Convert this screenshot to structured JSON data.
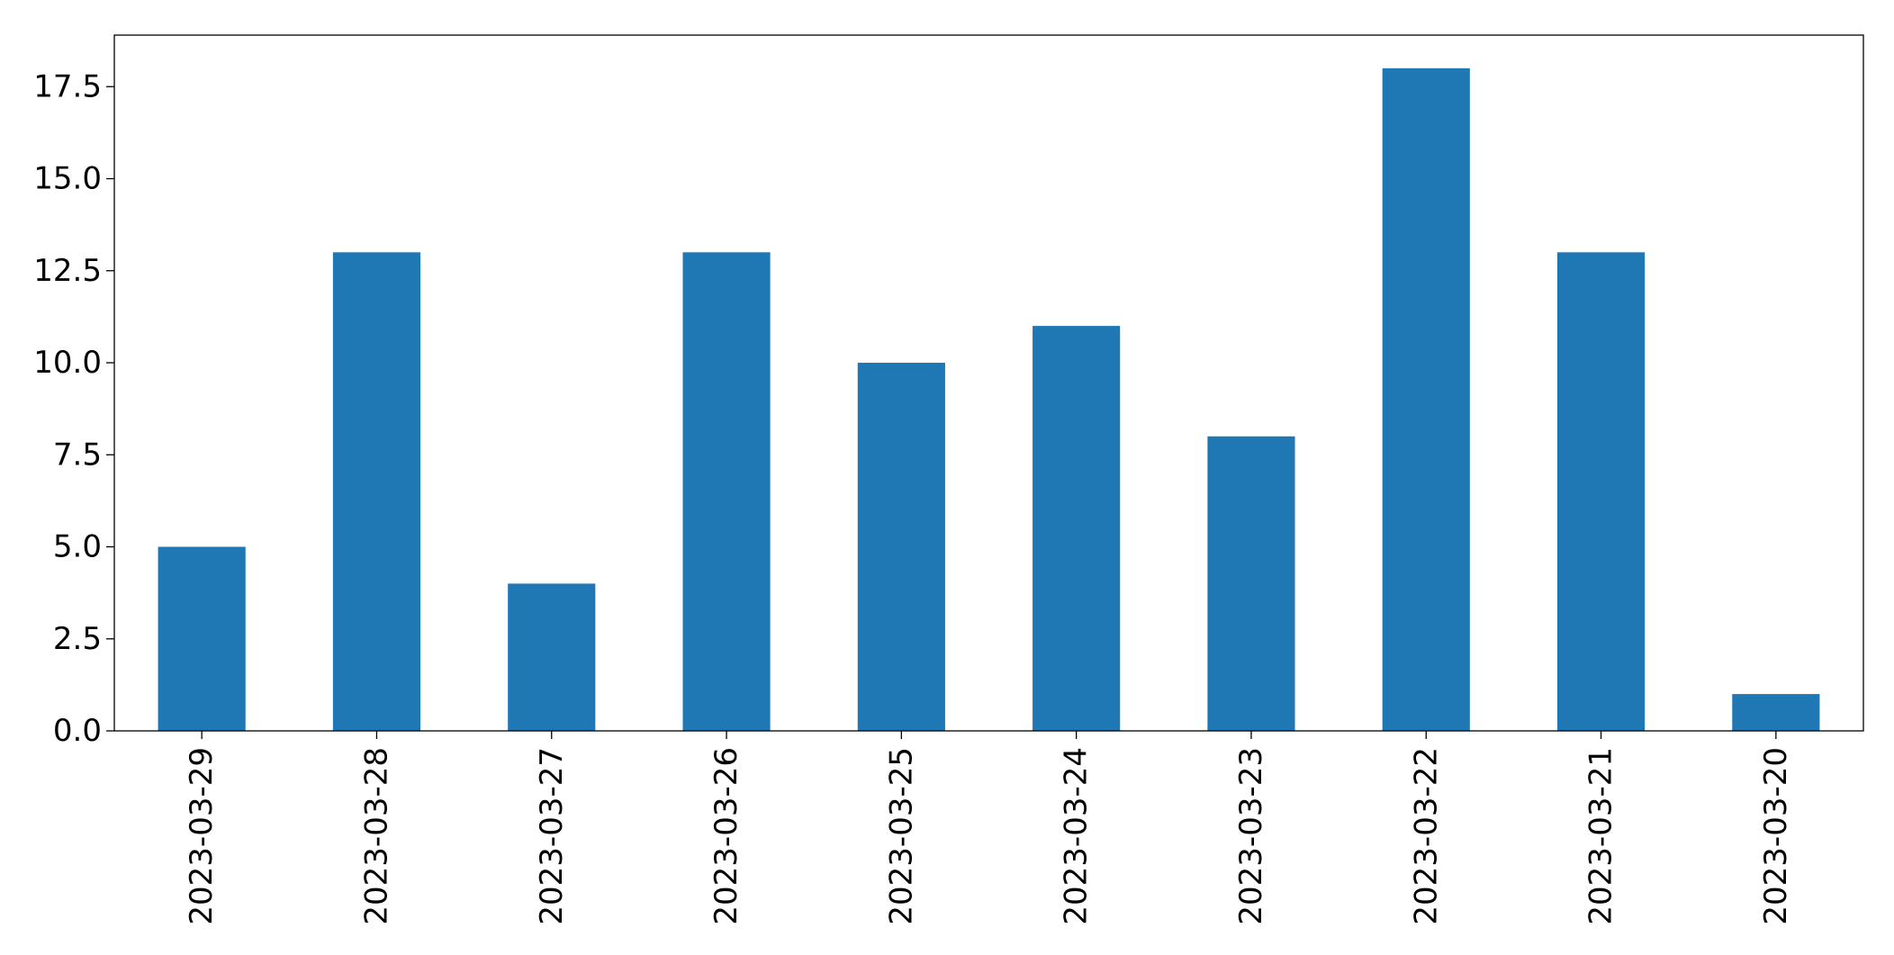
{
  "chart_data": {
    "type": "bar",
    "title": "",
    "xlabel": "",
    "ylabel": "",
    "categories": [
      "2023-03-29",
      "2023-03-28",
      "2023-03-27",
      "2023-03-26",
      "2023-03-25",
      "2023-03-24",
      "2023-03-23",
      "2023-03-22",
      "2023-03-21",
      "2023-03-20"
    ],
    "values": [
      5,
      13,
      4,
      13,
      10,
      11,
      8,
      18,
      13,
      1
    ],
    "ylim": [
      0,
      18.9
    ],
    "yticks": [
      "0.0",
      "2.5",
      "5.0",
      "7.5",
      "10.0",
      "12.5",
      "15.0",
      "17.5"
    ],
    "grid": false,
    "legend": "none",
    "bar_color": "#1f77b4"
  }
}
